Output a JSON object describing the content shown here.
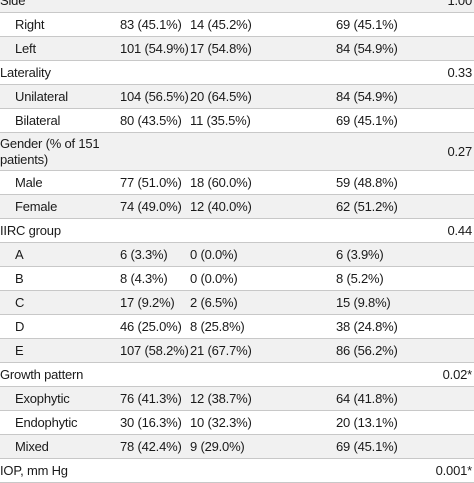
{
  "rows": [
    {
      "label": "Side",
      "all": "",
      "g1": "",
      "g2": "",
      "p": "1.00",
      "indent": false
    },
    {
      "label": "Right",
      "all": "83 (45.1%)",
      "g1": "14 (45.2%)",
      "g2": "69 (45.1%)",
      "p": "",
      "indent": true
    },
    {
      "label": "Left",
      "all": "101 (54.9%)",
      "g1": "17 (54.8%)",
      "g2": "84 (54.9%)",
      "p": "",
      "indent": true
    },
    {
      "label": "Laterality",
      "all": "",
      "g1": "",
      "g2": "",
      "p": "0.33",
      "indent": false
    },
    {
      "label": "Unilateral",
      "all": "104 (56.5%)",
      "g1": "20 (64.5%)",
      "g2": "84 (54.9%)",
      "p": "",
      "indent": true
    },
    {
      "label": "Bilateral",
      "all": "80 (43.5%)",
      "g1": "11 (35.5%)",
      "g2": "69 (45.1%)",
      "p": "",
      "indent": true
    },
    {
      "label": "Gender (% of 151 patients)",
      "all": "",
      "g1": "",
      "g2": "",
      "p": "0.27",
      "indent": false
    },
    {
      "label": "Male",
      "all": "77 (51.0%)",
      "g1": "18 (60.0%)",
      "g2": "59 (48.8%)",
      "p": "",
      "indent": true
    },
    {
      "label": "Female",
      "all": "74 (49.0%)",
      "g1": "12 (40.0%)",
      "g2": "62 (51.2%)",
      "p": "",
      "indent": true
    },
    {
      "label": "IIRC group",
      "all": "",
      "g1": "",
      "g2": "",
      "p": "0.44",
      "indent": false
    },
    {
      "label": "A",
      "all": "6 (3.3%)",
      "g1": "0 (0.0%)",
      "g2": "6 (3.9%)",
      "p": "",
      "indent": true
    },
    {
      "label": "B",
      "all": "8 (4.3%)",
      "g1": "0 (0.0%)",
      "g2": "8 (5.2%)",
      "p": "",
      "indent": true
    },
    {
      "label": "C",
      "all": "17 (9.2%)",
      "g1": "2 (6.5%)",
      "g2": "15 (9.8%)",
      "p": "",
      "indent": true
    },
    {
      "label": "D",
      "all": "46 (25.0%)",
      "g1": "8 (25.8%)",
      "g2": "38 (24.8%)",
      "p": "",
      "indent": true
    },
    {
      "label": "E",
      "all": "107 (58.2%)",
      "g1": "21 (67.7%)",
      "g2": "86 (56.2%)",
      "p": "",
      "indent": true
    },
    {
      "label": "Growth pattern",
      "all": "",
      "g1": "",
      "g2": "",
      "p": "0.02*",
      "indent": false
    },
    {
      "label": "Exophytic",
      "all": "76 (41.3%)",
      "g1": "12 (38.7%)",
      "g2": "64 (41.8%)",
      "p": "",
      "indent": true
    },
    {
      "label": "Endophytic",
      "all": "30 (16.3%)",
      "g1": "10 (32.3%)",
      "g2": "20 (13.1%)",
      "p": "",
      "indent": true
    },
    {
      "label": "Mixed",
      "all": "78 (42.4%)",
      "g1": "9 (29.0%)",
      "g2": "69 (45.1%)",
      "p": "",
      "indent": true
    },
    {
      "label": "IOP, mm Hg",
      "all": "",
      "g1": "",
      "g2": "",
      "p": "0.001*",
      "indent": false
    }
  ]
}
